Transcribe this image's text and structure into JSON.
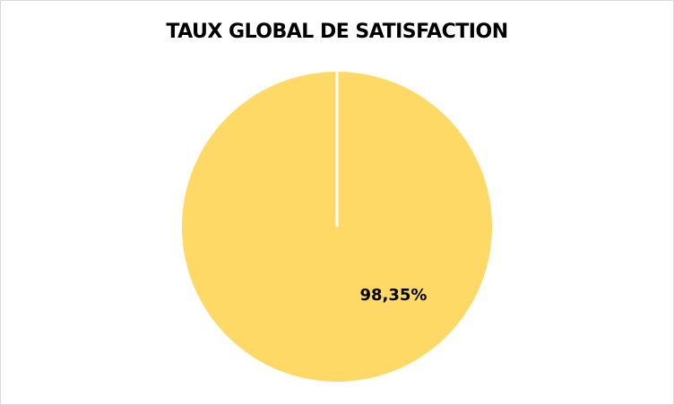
{
  "chart_data": {
    "type": "pie",
    "title": "TAUX GLOBAL DE SATISFACTION",
    "slices": [
      {
        "value": 98.35,
        "label": "98,35%",
        "color": "#FFD966"
      }
    ],
    "legend": "none"
  }
}
